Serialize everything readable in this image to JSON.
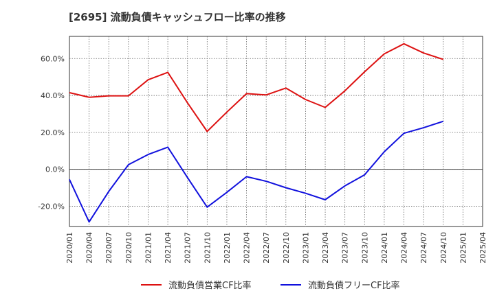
{
  "chart_data": {
    "type": "line",
    "title": "[2695]  流動負債キャッシュフロー比率の推移",
    "x": [
      "2020/01",
      "2020/04",
      "2020/07",
      "2020/10",
      "2021/01",
      "2021/04",
      "2021/07",
      "2021/10",
      "2022/01",
      "2022/04",
      "2022/07",
      "2022/10",
      "2023/01",
      "2023/04",
      "2023/07",
      "2023/10",
      "2024/01",
      "2024/04",
      "2024/07",
      "2024/10"
    ],
    "x_ticks": [
      "2020/01",
      "2020/04",
      "2020/07",
      "2020/10",
      "2021/01",
      "2021/04",
      "2021/07",
      "2021/10",
      "2022/01",
      "2022/04",
      "2022/07",
      "2022/10",
      "2023/01",
      "2023/04",
      "2023/07",
      "2023/10",
      "2024/01",
      "2024/04",
      "2024/07",
      "2024/10",
      "2025/01",
      "2025/04"
    ],
    "y_ticks": [
      {
        "value": -20,
        "label": "-20.0%"
      },
      {
        "value": 0,
        "label": "0.0%"
      },
      {
        "value": 20,
        "label": "20.0%"
      },
      {
        "value": 40,
        "label": "40.0%"
      },
      {
        "value": 60,
        "label": "60.0%"
      }
    ],
    "ylim": [
      -31,
      72
    ],
    "grid": true,
    "legend_position": "bottom",
    "series": [
      {
        "name": "流動負債営業CF比率",
        "color": "#dd1111",
        "values": [
          41.5,
          39.0,
          39.8,
          39.8,
          48.5,
          52.5,
          36.0,
          20.5,
          31.0,
          41.0,
          40.3,
          44.0,
          37.8,
          33.5,
          42.5,
          52.8,
          62.5,
          68.0,
          63.0,
          59.5
        ]
      },
      {
        "name": "流動負債フリーCF比率",
        "color": "#1111dd",
        "values": [
          -5.5,
          -28.5,
          -12.0,
          2.5,
          8.0,
          12.0,
          -4.5,
          -20.5,
          -12.5,
          -4.0,
          -6.5,
          -10.0,
          -13.0,
          -16.5,
          -9.0,
          -3.0,
          9.5,
          19.5,
          22.5,
          26.0
        ]
      }
    ]
  }
}
